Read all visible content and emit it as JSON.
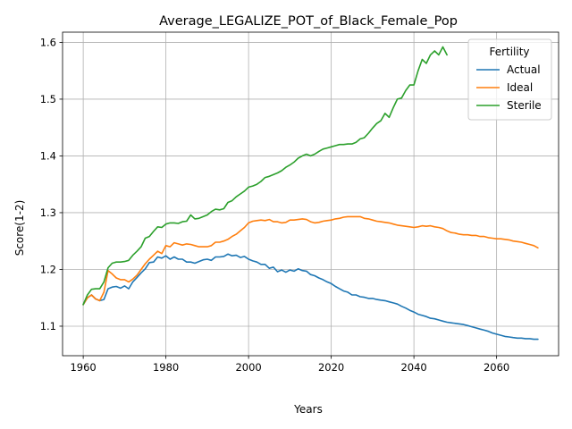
{
  "chart_data": {
    "type": "line",
    "title": "Average_LEGALIZE_POT_of_Black_Female_Pop",
    "xlabel": "Years",
    "ylabel": "Score(1-2)",
    "xlim": [
      1955,
      2075
    ],
    "ylim": [
      1.048,
      1.618
    ],
    "x_ticks": [
      1960,
      1980,
      2000,
      2020,
      2040,
      2060
    ],
    "y_ticks": [
      1.1,
      1.2,
      1.3,
      1.4,
      1.5,
      1.6
    ],
    "grid": true,
    "legend": {
      "title": "Fertility",
      "placement": "top-right"
    },
    "series": [
      {
        "name": "Actual",
        "color": "#1f77b4",
        "x": [
          1960,
          1961,
          1962,
          1963,
          1964,
          1965,
          1966,
          1967,
          1968,
          1969,
          1970,
          1971,
          1972,
          1973,
          1974,
          1975,
          1976,
          1977,
          1978,
          1979,
          1980,
          1981,
          1982,
          1983,
          1984,
          1985,
          1986,
          1987,
          1988,
          1989,
          1990,
          1991,
          1992,
          1993,
          1994,
          1995,
          1996,
          1997,
          1998,
          1999,
          2000,
          2001,
          2002,
          2003,
          2004,
          2005,
          2006,
          2007,
          2008,
          2009,
          2010,
          2011,
          2012,
          2013,
          2014,
          2015,
          2016,
          2017,
          2018,
          2019,
          2020,
          2021,
          2022,
          2023,
          2024,
          2025,
          2026,
          2027,
          2028,
          2029,
          2030,
          2031,
          2032,
          2033,
          2034,
          2035,
          2036,
          2037,
          2038,
          2039,
          2040,
          2041,
          2042,
          2043,
          2044,
          2045,
          2046,
          2047,
          2048,
          2049,
          2050,
          2051,
          2052,
          2053,
          2054,
          2055,
          2056,
          2057,
          2058,
          2059,
          2060,
          2061,
          2062,
          2063,
          2064,
          2065,
          2066,
          2067,
          2068,
          2069,
          2070
        ],
        "values": [
          1.138,
          1.15,
          1.155,
          1.148,
          1.145,
          1.147,
          1.166,
          1.169,
          1.17,
          1.167,
          1.171,
          1.166,
          1.178,
          1.186,
          1.194,
          1.201,
          1.212,
          1.213,
          1.222,
          1.22,
          1.224,
          1.218,
          1.222,
          1.218,
          1.218,
          1.213,
          1.213,
          1.211,
          1.214,
          1.217,
          1.218,
          1.216,
          1.222,
          1.222,
          1.223,
          1.227,
          1.224,
          1.225,
          1.221,
          1.223,
          1.218,
          1.215,
          1.213,
          1.209,
          1.209,
          1.202,
          1.204,
          1.196,
          1.199,
          1.195,
          1.199,
          1.197,
          1.201,
          1.198,
          1.197,
          1.191,
          1.189,
          1.185,
          1.182,
          1.178,
          1.175,
          1.17,
          1.166,
          1.162,
          1.16,
          1.155,
          1.155,
          1.152,
          1.151,
          1.149,
          1.149,
          1.147,
          1.146,
          1.145,
          1.143,
          1.141,
          1.139,
          1.135,
          1.132,
          1.128,
          1.125,
          1.121,
          1.119,
          1.117,
          1.114,
          1.113,
          1.111,
          1.109,
          1.107,
          1.106,
          1.105,
          1.104,
          1.103,
          1.101,
          1.099,
          1.097,
          1.095,
          1.093,
          1.091,
          1.088,
          1.086,
          1.084,
          1.082,
          1.081,
          1.08,
          1.079,
          1.079,
          1.078,
          1.078,
          1.077,
          1.077
        ]
      },
      {
        "name": "Ideal",
        "color": "#ff7f0e",
        "x": [
          1960,
          1961,
          1962,
          1963,
          1964,
          1965,
          1966,
          1967,
          1968,
          1969,
          1970,
          1971,
          1972,
          1973,
          1974,
          1975,
          1976,
          1977,
          1978,
          1979,
          1980,
          1981,
          1982,
          1983,
          1984,
          1985,
          1986,
          1987,
          1988,
          1989,
          1990,
          1991,
          1992,
          1993,
          1994,
          1995,
          1996,
          1997,
          1998,
          1999,
          2000,
          2001,
          2002,
          2003,
          2004,
          2005,
          2006,
          2007,
          2008,
          2009,
          2010,
          2011,
          2012,
          2013,
          2014,
          2015,
          2016,
          2017,
          2018,
          2019,
          2020,
          2021,
          2022,
          2023,
          2024,
          2025,
          2026,
          2027,
          2028,
          2029,
          2030,
          2031,
          2032,
          2033,
          2034,
          2035,
          2036,
          2037,
          2038,
          2039,
          2040,
          2041,
          2042,
          2043,
          2044,
          2045,
          2046,
          2047,
          2048,
          2049,
          2050,
          2051,
          2052,
          2053,
          2054,
          2055,
          2056,
          2057,
          2058,
          2059,
          2060,
          2061,
          2062,
          2063,
          2064,
          2065,
          2066,
          2067,
          2068,
          2069,
          2070
        ],
        "values": [
          1.138,
          1.15,
          1.155,
          1.148,
          1.145,
          1.16,
          1.198,
          1.192,
          1.185,
          1.182,
          1.182,
          1.178,
          1.183,
          1.19,
          1.2,
          1.21,
          1.218,
          1.225,
          1.232,
          1.228,
          1.242,
          1.24,
          1.247,
          1.245,
          1.243,
          1.245,
          1.244,
          1.242,
          1.24,
          1.24,
          1.24,
          1.242,
          1.248,
          1.248,
          1.25,
          1.253,
          1.258,
          1.262,
          1.268,
          1.274,
          1.282,
          1.285,
          1.286,
          1.287,
          1.286,
          1.288,
          1.284,
          1.284,
          1.282,
          1.283,
          1.287,
          1.287,
          1.288,
          1.289,
          1.288,
          1.284,
          1.282,
          1.283,
          1.285,
          1.286,
          1.287,
          1.289,
          1.29,
          1.292,
          1.293,
          1.293,
          1.293,
          1.293,
          1.29,
          1.289,
          1.287,
          1.285,
          1.284,
          1.283,
          1.282,
          1.28,
          1.278,
          1.277,
          1.276,
          1.275,
          1.274,
          1.275,
          1.277,
          1.276,
          1.277,
          1.275,
          1.274,
          1.272,
          1.268,
          1.265,
          1.264,
          1.262,
          1.261,
          1.261,
          1.26,
          1.26,
          1.258,
          1.258,
          1.256,
          1.255,
          1.254,
          1.254,
          1.253,
          1.252,
          1.25,
          1.249,
          1.248,
          1.246,
          1.244,
          1.242,
          1.238
        ]
      },
      {
        "name": "Sterile",
        "color": "#2ca02c",
        "x": [
          1960,
          1961,
          1962,
          1963,
          1964,
          1965,
          1966,
          1967,
          1968,
          1969,
          1970,
          1971,
          1972,
          1973,
          1974,
          1975,
          1976,
          1977,
          1978,
          1979,
          1980,
          1981,
          1982,
          1983,
          1984,
          1985,
          1986,
          1987,
          1988,
          1989,
          1990,
          1991,
          1992,
          1993,
          1994,
          1995,
          1996,
          1997,
          1998,
          1999,
          2000,
          2001,
          2002,
          2003,
          2004,
          2005,
          2006,
          2007,
          2008,
          2009,
          2010,
          2011,
          2012,
          2013,
          2014,
          2015,
          2016,
          2017,
          2018,
          2019,
          2020,
          2021,
          2022,
          2023,
          2024,
          2025,
          2026,
          2027,
          2028,
          2029,
          2030,
          2031,
          2032,
          2033,
          2034,
          2035,
          2036,
          2037,
          2038,
          2039,
          2040,
          2041,
          2042,
          2043,
          2044,
          2045,
          2046,
          2047,
          2048,
          2049
        ],
        "values": [
          1.138,
          1.155,
          1.165,
          1.166,
          1.166,
          1.178,
          1.203,
          1.211,
          1.213,
          1.213,
          1.214,
          1.216,
          1.225,
          1.232,
          1.24,
          1.255,
          1.258,
          1.267,
          1.275,
          1.274,
          1.28,
          1.282,
          1.282,
          1.281,
          1.284,
          1.285,
          1.296,
          1.289,
          1.29,
          1.293,
          1.296,
          1.302,
          1.306,
          1.305,
          1.307,
          1.318,
          1.321,
          1.328,
          1.333,
          1.338,
          1.345,
          1.347,
          1.35,
          1.355,
          1.362,
          1.364,
          1.367,
          1.37,
          1.374,
          1.38,
          1.384,
          1.389,
          1.396,
          1.4,
          1.403,
          1.4,
          1.403,
          1.408,
          1.412,
          1.414,
          1.416,
          1.418,
          1.42,
          1.42,
          1.421,
          1.421,
          1.424,
          1.43,
          1.432,
          1.44,
          1.449,
          1.457,
          1.462,
          1.475,
          1.468,
          1.485,
          1.5,
          1.502,
          1.515,
          1.525,
          1.525,
          1.55,
          1.57,
          1.563,
          1.578,
          1.585,
          1.578,
          1.592,
          1.578,
          null
        ]
      }
    ]
  }
}
